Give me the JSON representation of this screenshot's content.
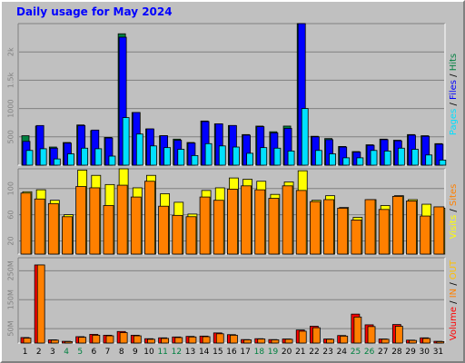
{
  "title": "Daily usage for May 2024",
  "colors": {
    "background": "#c0c0c0",
    "title": "#0000ff",
    "pages": "#00e0ff",
    "files": "#0000ff",
    "hits": "#008040",
    "visits": "#ffff00",
    "sites": "#ff8000",
    "volume": "#ff0000",
    "in": "#ff8000",
    "out": "#ffc000",
    "weekend_day": "#008040"
  },
  "chart_data": [
    {
      "type": "bar",
      "name": "hits-files-pages",
      "categories": [
        "1",
        "2",
        "3",
        "4",
        "5",
        "6",
        "7",
        "8",
        "9",
        "10",
        "11",
        "12",
        "13",
        "14",
        "15",
        "16",
        "17",
        "18",
        "19",
        "20",
        "21",
        "22",
        "23",
        "24",
        "25",
        "26",
        "27",
        "28",
        "29",
        "30",
        "31"
      ],
      "series": [
        {
          "name": "Hits",
          "values": [
            520,
            690,
            320,
            400,
            710,
            610,
            490,
            2320,
            930,
            640,
            520,
            460,
            400,
            780,
            730,
            700,
            540,
            690,
            590,
            690,
            2500,
            510,
            470,
            330,
            240,
            360,
            460,
            440,
            540,
            520,
            380
          ]
        },
        {
          "name": "Files",
          "values": [
            420,
            700,
            300,
            390,
            700,
            620,
            480,
            2260,
            930,
            640,
            520,
            440,
            390,
            770,
            730,
            700,
            530,
            680,
            570,
            650,
            2500,
            500,
            450,
            320,
            230,
            350,
            450,
            430,
            530,
            510,
            370
          ]
        },
        {
          "name": "Pages",
          "values": [
            260,
            290,
            110,
            200,
            300,
            290,
            160,
            840,
            550,
            340,
            310,
            280,
            170,
            380,
            340,
            320,
            210,
            310,
            300,
            250,
            1000,
            260,
            200,
            130,
            130,
            260,
            250,
            300,
            280,
            180,
            90
          ]
        }
      ],
      "yticks": [
        "500",
        "1000",
        "1.5k",
        "2k"
      ],
      "ylim": [
        0,
        2500
      ],
      "legend": [
        "Pages",
        "Files",
        "Hits"
      ],
      "legend_position": "right"
    },
    {
      "type": "bar",
      "name": "visits-sites",
      "categories": [
        "1",
        "2",
        "3",
        "4",
        "5",
        "6",
        "7",
        "8",
        "9",
        "10",
        "11",
        "12",
        "13",
        "14",
        "15",
        "16",
        "17",
        "18",
        "19",
        "20",
        "21",
        "22",
        "23",
        "24",
        "25",
        "26",
        "27",
        "28",
        "29",
        "30",
        "31"
      ],
      "series": [
        {
          "name": "Visits",
          "values": [
            95,
            98,
            82,
            60,
            128,
            120,
            106,
            130,
            101,
            120,
            92,
            79,
            61,
            97,
            101,
            116,
            114,
            111,
            91,
            110,
            127,
            82,
            89,
            71,
            56,
            83,
            74,
            89,
            83,
            76,
            70
          ]
        },
        {
          "name": "Sites",
          "values": [
            93,
            84,
            77,
            57,
            103,
            101,
            74,
            105,
            87,
            111,
            73,
            59,
            57,
            87,
            82,
            99,
            104,
            98,
            85,
            104,
            97,
            80,
            83,
            70,
            52,
            83,
            68,
            88,
            81,
            58,
            72
          ]
        }
      ],
      "yticks": [
        "20",
        "60",
        "100"
      ],
      "ylim": [
        0,
        130
      ],
      "legend": [
        "Visits",
        "Sites"
      ],
      "legend_position": "right"
    },
    {
      "type": "bar",
      "name": "volume-kbytes",
      "categories": [
        "1",
        "2",
        "3",
        "4",
        "5",
        "6",
        "7",
        "8",
        "9",
        "10",
        "11",
        "12",
        "13",
        "14",
        "15",
        "16",
        "17",
        "18",
        "19",
        "20",
        "21",
        "22",
        "23",
        "24",
        "25",
        "26",
        "27",
        "28",
        "29",
        "30",
        "31"
      ],
      "series": [
        {
          "name": "Volume",
          "values": [
            19,
            270,
            11,
            6,
            22,
            30,
            27,
            40,
            27,
            15,
            18,
            21,
            23,
            24,
            35,
            29,
            12,
            15,
            12,
            14,
            45,
            58,
            14,
            26,
            100,
            63,
            14,
            64,
            10,
            18,
            6
          ]
        },
        {
          "name": "IN",
          "values": [
            17,
            270,
            10,
            5,
            20,
            27,
            25,
            36,
            25,
            13,
            16,
            19,
            21,
            22,
            32,
            27,
            11,
            14,
            11,
            13,
            41,
            53,
            13,
            24,
            90,
            57,
            13,
            58,
            9,
            16,
            5
          ]
        },
        {
          "name": "OUT",
          "values": [
            0,
            0,
            0,
            0,
            0,
            0,
            0,
            0,
            0,
            0,
            0,
            0,
            0,
            0,
            0,
            0,
            0,
            0,
            0,
            0,
            0,
            0,
            0,
            0,
            0,
            0,
            0,
            0,
            0,
            0,
            0
          ]
        }
      ],
      "yticks": [
        "50M",
        "150M",
        "250M"
      ],
      "ylim": [
        0,
        295
      ],
      "legend": [
        "Volume",
        "IN",
        "OUT"
      ],
      "legend_position": "right"
    }
  ],
  "xaxis": {
    "labels": [
      "1",
      "2",
      "3",
      "4",
      "5",
      "6",
      "7",
      "8",
      "9",
      "10",
      "11",
      "12",
      "13",
      "14",
      "15",
      "16",
      "17",
      "18",
      "19",
      "20",
      "21",
      "22",
      "23",
      "24",
      "25",
      "26",
      "27",
      "28",
      "29",
      "30",
      "31"
    ],
    "weekend_days": [
      "4",
      "5",
      "11",
      "12",
      "18",
      "19",
      "25",
      "26"
    ]
  },
  "right_labels": {
    "top": [
      {
        "text": "Pages",
        "color": "#00e0ff"
      },
      {
        "text": " / ",
        "color": "#000000"
      },
      {
        "text": "Files",
        "color": "#0000ff"
      },
      {
        "text": " / ",
        "color": "#000000"
      },
      {
        "text": "Hits",
        "color": "#008040"
      }
    ],
    "mid": [
      {
        "text": "Visits",
        "color": "#ffff00"
      },
      {
        "text": " / ",
        "color": "#000000"
      },
      {
        "text": "Sites",
        "color": "#ff8000"
      }
    ],
    "bottom": [
      {
        "text": "Volume",
        "color": "#ff0000"
      },
      {
        "text": " / ",
        "color": "#000000"
      },
      {
        "text": "IN",
        "color": "#ff8000"
      },
      {
        "text": " / ",
        "color": "#000000"
      },
      {
        "text": "OUT",
        "color": "#ffc000"
      }
    ]
  }
}
